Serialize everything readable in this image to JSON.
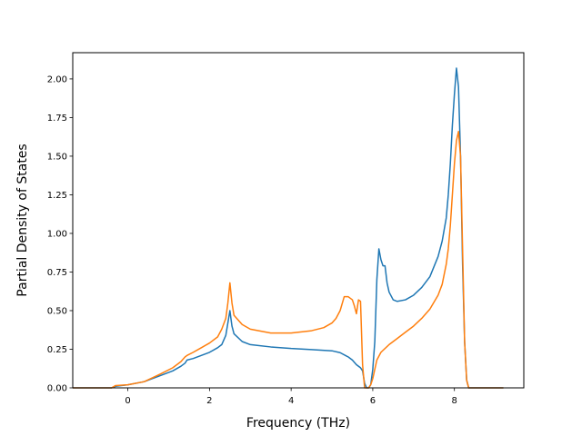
{
  "chart_data": {
    "type": "line",
    "title": "",
    "xlabel": "Frequency (THz)",
    "ylabel": "Partial Density of States",
    "xlim": [
      -1.35,
      9.7
    ],
    "ylim": [
      0.0,
      2.17
    ],
    "xticks": [
      0,
      2,
      4,
      6,
      8
    ],
    "xtick_labels": [
      "0",
      "2",
      "4",
      "6",
      "8"
    ],
    "yticks": [
      0.0,
      0.25,
      0.5,
      0.75,
      1.0,
      1.25,
      1.5,
      1.75,
      2.0
    ],
    "ytick_labels": [
      "0.00",
      "0.25",
      "0.50",
      "0.75",
      "1.00",
      "1.25",
      "1.50",
      "1.75",
      "2.00"
    ],
    "grid": false,
    "legend": false,
    "series": [
      {
        "color": "#1f77b4",
        "x": [
          -1.35,
          -0.4,
          -0.3,
          0.0,
          0.4,
          0.8,
          1.1,
          1.3,
          1.4,
          1.45,
          1.6,
          1.8,
          2.0,
          2.2,
          2.3,
          2.4,
          2.45,
          2.5,
          2.55,
          2.6,
          2.8,
          3.0,
          3.5,
          4.0,
          4.5,
          5.0,
          5.2,
          5.4,
          5.5,
          5.6,
          5.7,
          5.75,
          5.8,
          5.85,
          5.9,
          5.95,
          6.0,
          6.05,
          6.1,
          6.15,
          6.2,
          6.25,
          6.3,
          6.35,
          6.4,
          6.5,
          6.6,
          6.8,
          7.0,
          7.2,
          7.4,
          7.6,
          7.7,
          7.8,
          7.85,
          7.9,
          7.95,
          8.0,
          8.05,
          8.1,
          8.15,
          8.2,
          8.25,
          8.3,
          8.35,
          8.4,
          8.5,
          9.2
        ],
        "y": [
          0.0,
          0.0,
          0.01,
          0.02,
          0.04,
          0.08,
          0.11,
          0.14,
          0.16,
          0.18,
          0.19,
          0.21,
          0.23,
          0.26,
          0.28,
          0.34,
          0.42,
          0.5,
          0.4,
          0.35,
          0.3,
          0.28,
          0.265,
          0.255,
          0.248,
          0.24,
          0.228,
          0.2,
          0.18,
          0.15,
          0.13,
          0.11,
          0.03,
          0.0,
          0.0,
          0.02,
          0.12,
          0.3,
          0.7,
          0.9,
          0.83,
          0.79,
          0.79,
          0.68,
          0.62,
          0.57,
          0.56,
          0.57,
          0.6,
          0.65,
          0.72,
          0.85,
          0.95,
          1.1,
          1.25,
          1.45,
          1.7,
          1.9,
          2.07,
          1.95,
          1.5,
          0.8,
          0.3,
          0.05,
          0.0,
          0.0,
          0.0,
          0.0
        ]
      },
      {
        "color": "#ff7f0e",
        "x": [
          -1.35,
          -0.4,
          -0.3,
          0.0,
          0.4,
          0.8,
          1.1,
          1.3,
          1.4,
          1.45,
          1.6,
          1.8,
          2.0,
          2.2,
          2.3,
          2.4,
          2.45,
          2.5,
          2.55,
          2.6,
          2.8,
          3.0,
          3.5,
          4.0,
          4.5,
          4.8,
          5.0,
          5.1,
          5.2,
          5.3,
          5.4,
          5.5,
          5.55,
          5.6,
          5.65,
          5.7,
          5.75,
          5.8,
          5.85,
          5.9,
          5.95,
          6.0,
          6.05,
          6.1,
          6.2,
          6.4,
          6.6,
          6.8,
          7.0,
          7.2,
          7.4,
          7.6,
          7.7,
          7.8,
          7.85,
          7.9,
          7.95,
          8.0,
          8.05,
          8.1,
          8.15,
          8.2,
          8.25,
          8.3,
          8.35,
          8.4,
          8.5,
          9.2
        ],
        "y": [
          0.0,
          0.0,
          0.015,
          0.02,
          0.04,
          0.09,
          0.13,
          0.17,
          0.2,
          0.21,
          0.23,
          0.26,
          0.29,
          0.33,
          0.38,
          0.45,
          0.55,
          0.68,
          0.55,
          0.47,
          0.41,
          0.38,
          0.355,
          0.355,
          0.37,
          0.39,
          0.42,
          0.45,
          0.5,
          0.59,
          0.59,
          0.57,
          0.53,
          0.48,
          0.57,
          0.56,
          0.15,
          0.0,
          0.0,
          0.0,
          0.02,
          0.06,
          0.12,
          0.18,
          0.23,
          0.28,
          0.32,
          0.36,
          0.4,
          0.45,
          0.51,
          0.6,
          0.67,
          0.8,
          0.9,
          1.05,
          1.25,
          1.45,
          1.6,
          1.66,
          1.5,
          0.9,
          0.3,
          0.05,
          0.0,
          0.0,
          0.0,
          0.0
        ]
      }
    ]
  }
}
